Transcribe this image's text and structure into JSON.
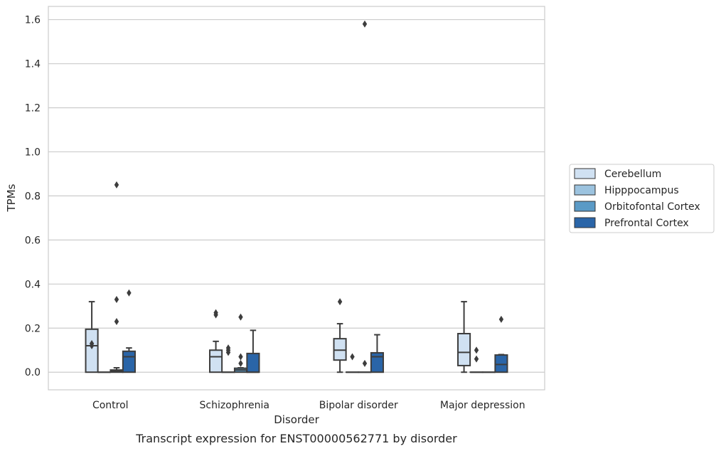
{
  "chart_data": {
    "type": "boxplot",
    "xlabel": "Disorder",
    "ylabel": "TPMs",
    "caption": "Transcript expression for ENST00000562771 by disorder",
    "ylim": [
      -0.08,
      1.66
    ],
    "yticks": [
      0.0,
      0.2,
      0.4,
      0.6,
      0.8,
      1.0,
      1.2,
      1.4,
      1.6
    ],
    "ytick_labels": [
      "0.0",
      "0.2",
      "0.4",
      "0.6",
      "0.8",
      "1.0",
      "1.2",
      "1.4",
      "1.6"
    ],
    "grid": "horizontal",
    "legend_position": "right",
    "categories": [
      "Control",
      "Schizophrenia",
      "Bipolar disorder",
      "Major depression"
    ],
    "series": [
      {
        "name": "Cerebellum",
        "color": "#d0e1f2",
        "boxes": [
          {
            "whislo": 0.0,
            "q1": 0.0,
            "med": 0.12,
            "q3": 0.195,
            "whishi": 0.32,
            "fliers": [
              0.12,
              0.13
            ]
          },
          {
            "whislo": 0.0,
            "q1": 0.0,
            "med": 0.07,
            "q3": 0.1,
            "whishi": 0.14,
            "fliers": [
              0.26,
              0.27
            ]
          },
          {
            "whislo": 0.0,
            "q1": 0.055,
            "med": 0.1,
            "q3": 0.152,
            "whishi": 0.22,
            "fliers": [
              0.32
            ]
          },
          {
            "whislo": 0.0,
            "q1": 0.03,
            "med": 0.09,
            "q3": 0.175,
            "whishi": 0.32,
            "fliers": []
          }
        ]
      },
      {
        "name": "Hipppocampus",
        "color": "#9cc3df",
        "boxes": [
          {
            "whislo": 0.0,
            "q1": 0.0,
            "med": 0.0,
            "q3": 0.0,
            "whishi": 0.0,
            "fliers": []
          },
          {
            "whislo": 0.0,
            "q1": 0.0,
            "med": 0.0,
            "q3": 0.0,
            "whishi": 0.0,
            "fliers": [
              0.09,
              0.1,
              0.11
            ]
          },
          {
            "whislo": 0.0,
            "q1": 0.0,
            "med": 0.0,
            "q3": 0.0,
            "whishi": 0.0,
            "fliers": [
              0.07
            ]
          },
          {
            "whislo": 0.0,
            "q1": 0.0,
            "med": 0.0,
            "q3": 0.0,
            "whishi": 0.0,
            "fliers": [
              0.06,
              0.1
            ]
          }
        ]
      },
      {
        "name": "Orbitofontal Cortex",
        "color": "#5a9ac6",
        "boxes": [
          {
            "whislo": 0.0,
            "q1": 0.0,
            "med": 0.005,
            "q3": 0.01,
            "whishi": 0.02,
            "fliers": [
              0.23,
              0.33,
              0.85
            ]
          },
          {
            "whislo": 0.0,
            "q1": 0.0,
            "med": 0.01,
            "q3": 0.018,
            "whishi": 0.02,
            "fliers": [
              0.04,
              0.07,
              0.25
            ]
          },
          {
            "whislo": 0.0,
            "q1": 0.0,
            "med": 0.0,
            "q3": 0.0,
            "whishi": 0.0,
            "fliers": [
              0.04,
              1.58
            ]
          },
          {
            "whislo": 0.0,
            "q1": 0.0,
            "med": 0.0,
            "q3": 0.0,
            "whishi": 0.0,
            "fliers": []
          }
        ]
      },
      {
        "name": "Prefrontal Cortex",
        "color": "#2a65a8",
        "boxes": [
          {
            "whislo": 0.0,
            "q1": 0.0,
            "med": 0.07,
            "q3": 0.095,
            "whishi": 0.11,
            "fliers": [
              0.36
            ]
          },
          {
            "whislo": 0.0,
            "q1": 0.0,
            "med": 0.0,
            "q3": 0.085,
            "whishi": 0.19,
            "fliers": []
          },
          {
            "whislo": 0.0,
            "q1": 0.0,
            "med": 0.07,
            "q3": 0.088,
            "whishi": 0.17,
            "fliers": []
          },
          {
            "whislo": 0.0,
            "q1": 0.0,
            "med": 0.035,
            "q3": 0.078,
            "whishi": 0.08,
            "fliers": [
              0.24
            ]
          }
        ]
      }
    ]
  }
}
